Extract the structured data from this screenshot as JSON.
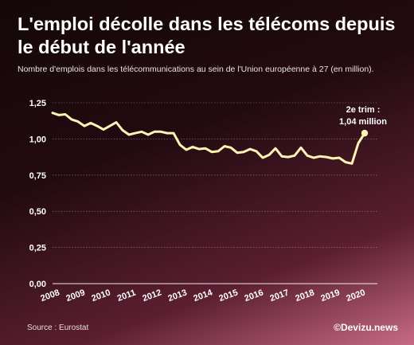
{
  "header": {
    "title": "L'emploi décolle dans les télécoms depuis le début de l'année",
    "subtitle": "Nombre d'emplois dans les télécommunications au sein de l'Union européenne à 27 (en million)."
  },
  "footer": {
    "source": "Source : Eurostat",
    "credit": "©Devizu.news"
  },
  "annotation": {
    "line1": "2e trim :",
    "line2": "1,04 million"
  },
  "colors": {
    "line": "#fff3b3",
    "text": "#ffffff",
    "grid": "#ffffff"
  },
  "chart_data": {
    "type": "line",
    "title": "L'emploi décolle dans les télécoms depuis le début de l'année",
    "xlabel": "",
    "ylabel": "",
    "ylim": [
      0,
      1.25
    ],
    "xlim": [
      2008,
      2020.75
    ],
    "grid": true,
    "y_ticks": [
      "0,00",
      "0,25",
      "0,50",
      "0,75",
      "1,00",
      "1,25"
    ],
    "y_tick_values": [
      0,
      0.25,
      0.5,
      0.75,
      1.0,
      1.25
    ],
    "x_ticks": [
      "2008",
      "2009",
      "2010",
      "2011",
      "2012",
      "2013",
      "2014",
      "2015",
      "2016",
      "2017",
      "2018",
      "2019",
      "2020"
    ],
    "series": [
      {
        "name": "",
        "values": [
          [
            2008.0,
            1.18
          ],
          [
            2008.25,
            1.165
          ],
          [
            2008.5,
            1.17
          ],
          [
            2008.75,
            1.135
          ],
          [
            2009.0,
            1.12
          ],
          [
            2009.25,
            1.09
          ],
          [
            2009.5,
            1.11
          ],
          [
            2009.75,
            1.09
          ],
          [
            2010.0,
            1.065
          ],
          [
            2010.25,
            1.09
          ],
          [
            2010.5,
            1.115
          ],
          [
            2010.75,
            1.06
          ],
          [
            2011.0,
            1.03
          ],
          [
            2011.25,
            1.04
          ],
          [
            2011.5,
            1.05
          ],
          [
            2011.75,
            1.03
          ],
          [
            2012.0,
            1.05
          ],
          [
            2012.25,
            1.05
          ],
          [
            2012.5,
            1.04
          ],
          [
            2012.75,
            1.04
          ],
          [
            2013.0,
            0.96
          ],
          [
            2013.25,
            0.925
          ],
          [
            2013.5,
            0.945
          ],
          [
            2013.75,
            0.93
          ],
          [
            2014.0,
            0.935
          ],
          [
            2014.25,
            0.91
          ],
          [
            2014.5,
            0.915
          ],
          [
            2014.75,
            0.95
          ],
          [
            2015.0,
            0.94
          ],
          [
            2015.25,
            0.905
          ],
          [
            2015.5,
            0.91
          ],
          [
            2015.75,
            0.93
          ],
          [
            2016.0,
            0.915
          ],
          [
            2016.25,
            0.87
          ],
          [
            2016.5,
            0.89
          ],
          [
            2016.75,
            0.935
          ],
          [
            2017.0,
            0.88
          ],
          [
            2017.25,
            0.875
          ],
          [
            2017.5,
            0.885
          ],
          [
            2017.75,
            0.94
          ],
          [
            2018.0,
            0.885
          ],
          [
            2018.25,
            0.87
          ],
          [
            2018.5,
            0.88
          ],
          [
            2018.75,
            0.875
          ],
          [
            2019.0,
            0.865
          ],
          [
            2019.25,
            0.87
          ],
          [
            2019.5,
            0.84
          ],
          [
            2019.75,
            0.83
          ],
          [
            2020.0,
            0.97
          ],
          [
            2020.25,
            1.04
          ]
        ]
      }
    ]
  }
}
